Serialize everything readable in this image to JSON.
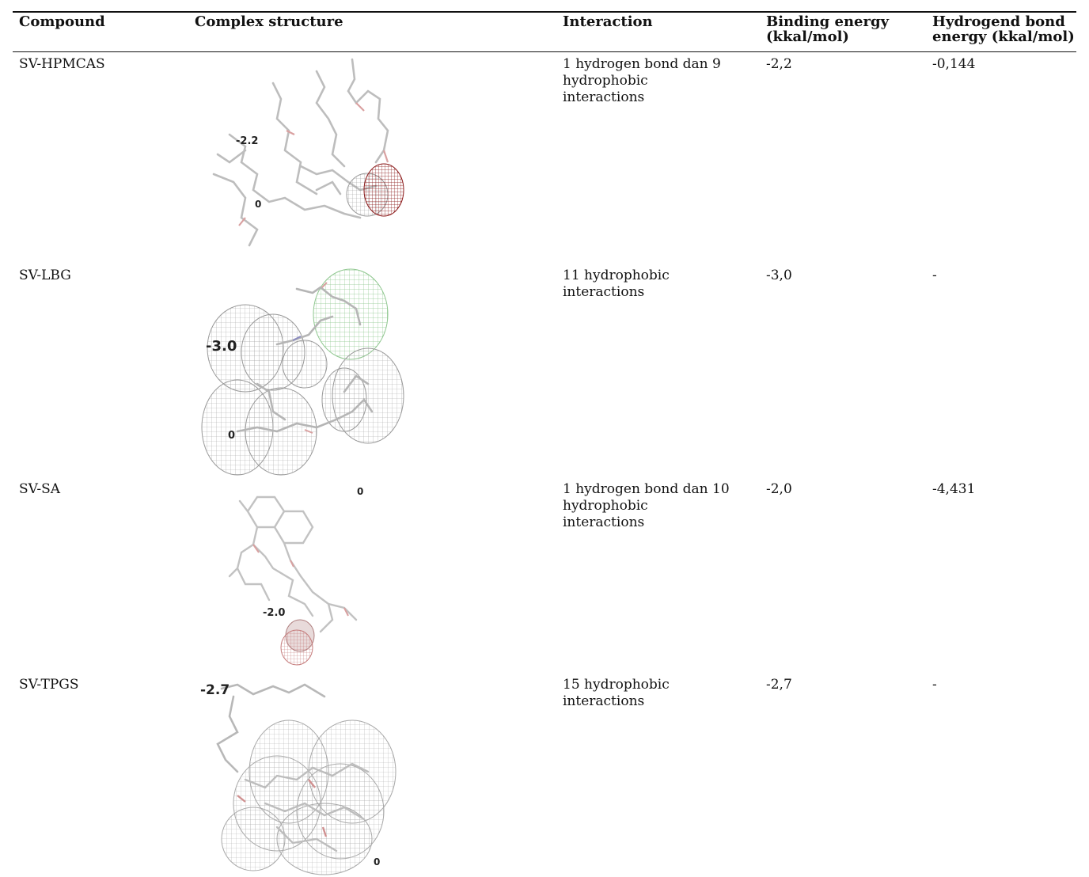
{
  "table": {
    "headers": {
      "compound": "Compound",
      "structure": "Complex structure",
      "interaction": "Interaction",
      "binding_line1": "Binding energy",
      "binding_line2": "(kkal/mol)",
      "hbond_line1": "Hydrogend bond",
      "hbond_line2": "energy (kkal/mol)"
    },
    "rows": [
      {
        "compound": "SV-HPMCAS",
        "interaction": [
          "1 hydrogen bond dan 9",
          "hydrophobic",
          "interactions"
        ],
        "binding_energy": "-2,2",
        "hbond_energy": "-0,144",
        "figure_labels": [
          "-2.2",
          "0"
        ]
      },
      {
        "compound": "SV-LBG",
        "interaction": [
          "11 hydrophobic",
          "interactions"
        ],
        "binding_energy": "-3,0",
        "hbond_energy": "-",
        "figure_labels": [
          "-3.0",
          "0"
        ]
      },
      {
        "compound": "SV-SA",
        "interaction": [
          "1 hydrogen bond dan 10",
          "hydrophobic",
          "interactions"
        ],
        "binding_energy": "-2,0",
        "hbond_energy": "-4,431",
        "figure_labels": [
          "0",
          "-2.0"
        ]
      },
      {
        "compound": "SV-TPGS",
        "interaction": [
          "15 hydrophobic",
          "interactions"
        ],
        "binding_energy": "-2,7",
        "hbond_energy": "-",
        "figure_labels": [
          "-2.7",
          "0"
        ]
      }
    ]
  }
}
